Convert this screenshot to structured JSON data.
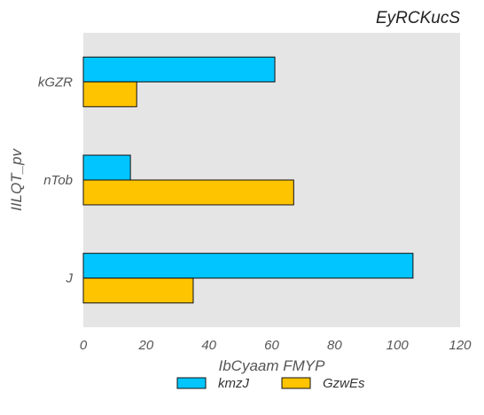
{
  "chart_data": {
    "type": "bar",
    "orientation": "horizontal",
    "title": "EyRCKucS",
    "xlabel": "IbCyaam FMYP",
    "ylabel": "IILQT_pv",
    "categories": [
      "J",
      "nTob",
      "kGZR"
    ],
    "series": [
      {
        "name": "kmzJ",
        "color": "#00c5ff",
        "values": [
          105,
          15,
          61
        ]
      },
      {
        "name": "GzwEs",
        "color": "#ffc400",
        "values": [
          35,
          67,
          17
        ]
      }
    ],
    "xlim": [
      0,
      120
    ],
    "xticks": [
      0,
      20,
      40,
      60,
      80,
      100,
      120
    ],
    "grid": false,
    "legend_position": "bottom-center",
    "background": "#e5e5e5"
  }
}
